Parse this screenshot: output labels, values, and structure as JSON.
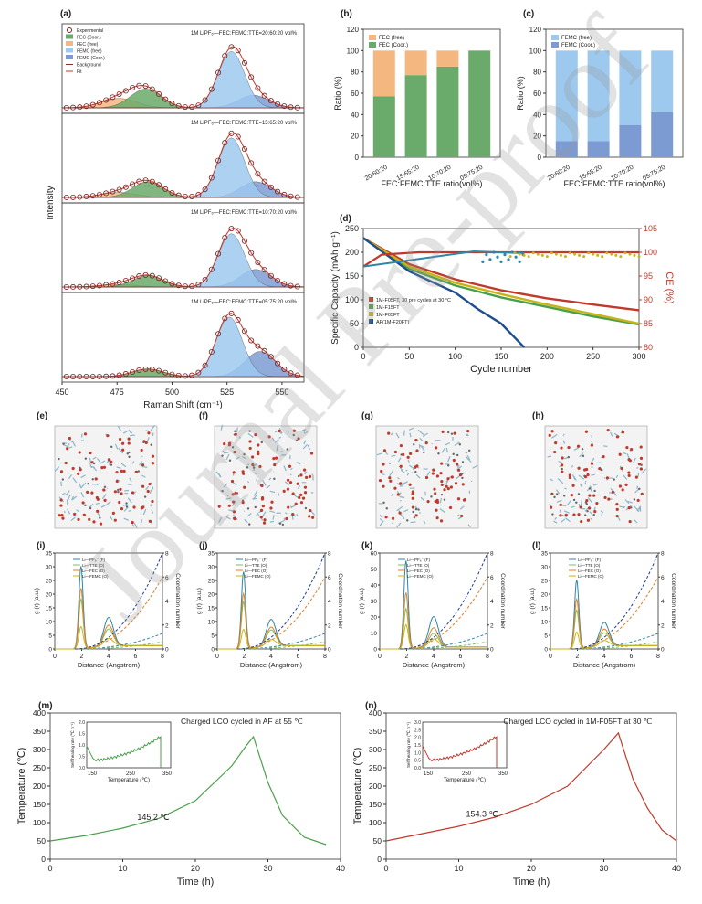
{
  "panel_labels": {
    "a": "(a)",
    "b": "(b)",
    "c": "(c)",
    "d": "(d)",
    "e": "(e)",
    "f": "(f)",
    "g": "(g)",
    "h": "(h)",
    "i": "(i)",
    "j": "(j)",
    "k": "(k)",
    "l": "(l)",
    "m": "(m)",
    "n": "(n)"
  },
  "watermark": "Journal Pre-proof",
  "colors": {
    "fec_coor": "#6aaa6a",
    "fec_free": "#f5b780",
    "femc_free": "#9ec9ef",
    "femc_coor": "#7d9bd3",
    "red": "#c0392b",
    "green": "#4aa04a",
    "orange": "#e67e22",
    "olive": "#c8b417",
    "navy": "#1f4e8c",
    "teal": "#2e86a8"
  },
  "chart_data": [
    {
      "id": "a",
      "type": "area",
      "xlabel": "Raman Shift (cm⁻¹)",
      "ylabel": "Intensity",
      "xlim": [
        450,
        560
      ],
      "xticks": [
        "450",
        "475",
        "500",
        "525",
        "550"
      ],
      "legend": [
        "Experimental",
        "FEC (Coor.)",
        "FEC (free)",
        "FEMC (free)",
        "FEMC (Coor.)",
        "Background",
        "Fit"
      ],
      "subplots": [
        {
          "label": "1M LiPF₆—FEC:FEMC:TTE=20:60:20 vol%",
          "fec_coor": [
            488,
            0.3
          ],
          "fec_free": [
            476,
            0.15
          ],
          "femc_free": [
            527,
            0.9
          ],
          "femc_coor": [
            537,
            0.2
          ]
        },
        {
          "label": "1M LiPF₆—FEC:FEMC:TTE=15:65:20 vol%",
          "fec_coor": [
            489,
            0.25
          ],
          "fec_free": [
            476,
            0.08
          ],
          "femc_free": [
            527,
            0.95
          ],
          "femc_coor": [
            538,
            0.25
          ]
        },
        {
          "label": "1M LiPF₆—FEC:FEMC:TTE=10:70:20 vol%",
          "fec_coor": [
            489,
            0.18
          ],
          "fec_free": [
            476,
            0.04
          ],
          "femc_free": [
            527,
            0.85
          ],
          "femc_coor": [
            538,
            0.28
          ]
        },
        {
          "label": "1M LiPF₆—FEC:FEMC:TTE=05:75:20 vol%",
          "fec_coor": [
            489,
            0.12
          ],
          "fec_free": [
            476,
            0.0
          ],
          "femc_free": [
            526,
            0.95
          ],
          "femc_coor": [
            540,
            0.4
          ]
        }
      ]
    },
    {
      "id": "b",
      "type": "bar",
      "xlabel": "FEC:FEMC:TTE ratio(vol%)",
      "ylabel": "Ratio (%)",
      "ylim": [
        0,
        120
      ],
      "yticks": [
        "0",
        "20",
        "40",
        "60",
        "80",
        "100",
        "120"
      ],
      "categories": [
        "20:60:20",
        "15:65:20",
        "10:70:20",
        "05:75:20"
      ],
      "series": [
        {
          "name": "FEC (Coor.)",
          "values": [
            57,
            77,
            85,
            100
          ]
        },
        {
          "name": "FEC (free)",
          "values": [
            43,
            23,
            15,
            0
          ]
        }
      ],
      "legend": [
        "FEC (free)",
        "FEC (Coor.)"
      ]
    },
    {
      "id": "c",
      "type": "bar",
      "xlabel": "FEC:FEMC:TTE ratio(vol%)",
      "ylabel": "Ratio (%)",
      "ylim": [
        0,
        120
      ],
      "yticks": [
        "0",
        "20",
        "40",
        "60",
        "80",
        "100",
        "120"
      ],
      "categories": [
        "20:60:20",
        "15:65:20",
        "10:70:20",
        "05:75:20"
      ],
      "series": [
        {
          "name": "FEMC (Coor.)",
          "values": [
            15,
            15,
            30,
            42
          ]
        },
        {
          "name": "FEMC (free)",
          "values": [
            85,
            85,
            70,
            58
          ]
        }
      ],
      "legend": [
        "FEMC (free)",
        "FEMC (Coor.)"
      ]
    },
    {
      "id": "d",
      "type": "scatter",
      "xlabel": "Cycle number",
      "ylabel": "Specific Capacity (mAh g⁻¹)",
      "y2label": "CE (%)",
      "xlim": [
        0,
        300
      ],
      "ylim": [
        0,
        250
      ],
      "y2lim": [
        80,
        105
      ],
      "xticks": [
        "0",
        "50",
        "100",
        "150",
        "200",
        "250",
        "300"
      ],
      "yticks": [
        "0",
        "50",
        "100",
        "150",
        "200",
        "250"
      ],
      "y2ticks": [
        "80",
        "85",
        "90",
        "95",
        "100",
        "105"
      ],
      "legend": [
        "1M-F05FT, 30 pre cycles at 30 °C",
        "1M-F15FT",
        "1M-F05FT",
        "AF(1M-F20FT)"
      ],
      "series": [
        {
          "name": "1M-F05FT, 30 pre cycles at 30 °C",
          "x": [
            0,
            50,
            100,
            150,
            200,
            250,
            300
          ],
          "y": [
            230,
            175,
            143,
            120,
            103,
            90,
            78
          ]
        },
        {
          "name": "1M-F15FT",
          "x": [
            0,
            50,
            100,
            150,
            200,
            250,
            300
          ],
          "y": [
            230,
            165,
            130,
            105,
            85,
            65,
            48
          ]
        },
        {
          "name": "1M-F05FT",
          "x": [
            0,
            50,
            100,
            150,
            200,
            250,
            300
          ],
          "y": [
            230,
            170,
            136,
            112,
            90,
            70,
            50
          ]
        },
        {
          "name": "AF(1M-F20FT)",
          "x": [
            0,
            50,
            100,
            125,
            150,
            165,
            175
          ],
          "y": [
            230,
            160,
            115,
            80,
            50,
            20,
            0
          ]
        }
      ]
    },
    {
      "id": "ijkl",
      "type": "line",
      "xlabel": "Distance (Angstrom)",
      "ylabel": "g (r) (a.u.)",
      "y2label": "Coordination number",
      "xticks": [
        "0",
        "2",
        "4",
        "6",
        "8"
      ],
      "legend": [
        "Li—PF₆⁻ (F)",
        "Li—TTE (O)",
        "Li—FEC (O)",
        "Li—FEMC (O)"
      ],
      "yticks": [
        [
          "0",
          "5",
          "10",
          "15",
          "20",
          "25",
          "30",
          "35"
        ],
        [
          "0",
          "5",
          "10",
          "15",
          "20",
          "25",
          "30",
          "35"
        ],
        [
          "0",
          "10",
          "20",
          "30",
          "40",
          "50",
          "60"
        ],
        [
          "0",
          "5",
          "10",
          "15",
          "20",
          "25",
          "30",
          "35"
        ]
      ],
      "y2ticks": [
        "0",
        "2",
        "4",
        "6",
        "8"
      ],
      "peaks": [
        [
          30,
          18,
          22,
          8
        ],
        [
          28,
          17,
          20,
          7
        ],
        [
          55,
          25,
          35,
          15
        ],
        [
          25,
          14,
          18,
          6
        ]
      ]
    },
    {
      "id": "m",
      "type": "line",
      "xlabel": "Time (h)",
      "ylabel": "Temperature (℃)",
      "xlim": [
        0,
        40
      ],
      "ylim": [
        0,
        400
      ],
      "xticks": [
        "0",
        "10",
        "20",
        "30",
        "40"
      ],
      "yticks": [
        "0",
        "50",
        "100",
        "150",
        "200",
        "250",
        "300",
        "350",
        "400"
      ],
      "annotation": "Charged LCO cycled in AF at 55 ℃",
      "label_temp": "145.2 ℃",
      "x": [
        0,
        5,
        10,
        15,
        20,
        25,
        27,
        28,
        30,
        32,
        35,
        38
      ],
      "y": [
        50,
        65,
        85,
        112,
        160,
        255,
        310,
        335,
        210,
        120,
        60,
        40
      ],
      "inset": {
        "xlabel": "Temperature (℃)",
        "ylabel": "Self-heating rate (℃ h⁻¹)",
        "xticks": [
          "150",
          "250",
          "350"
        ],
        "yticks": [
          "0.0",
          "0.5",
          "1.0",
          "1.5",
          "2.0"
        ]
      }
    },
    {
      "id": "n",
      "type": "line",
      "xlabel": "Time (h)",
      "ylabel": "Temperature (℃)",
      "xlim": [
        0,
        40
      ],
      "ylim": [
        0,
        400
      ],
      "xticks": [
        "0",
        "10",
        "20",
        "30",
        "40"
      ],
      "yticks": [
        "0",
        "50",
        "100",
        "150",
        "200",
        "250",
        "300",
        "350",
        "400"
      ],
      "annotation": "Charged LCO cycled in 1M-F05FT at 30 ℃",
      "label_temp": "154.3 ℃",
      "x": [
        0,
        5,
        10,
        15,
        20,
        25,
        30,
        32,
        34,
        36,
        38,
        40
      ],
      "y": [
        50,
        70,
        90,
        115,
        150,
        200,
        300,
        345,
        220,
        140,
        80,
        50
      ],
      "inset": {
        "xlabel": "Temperature (℃)",
        "ylabel": "Self-heating rate (℃ h⁻¹)",
        "xticks": [
          "150",
          "250",
          "350"
        ],
        "yticks": [
          "0.0",
          "0.5",
          "1.0",
          "1.5",
          "2.0",
          "2.5",
          "3.0"
        ]
      }
    }
  ]
}
